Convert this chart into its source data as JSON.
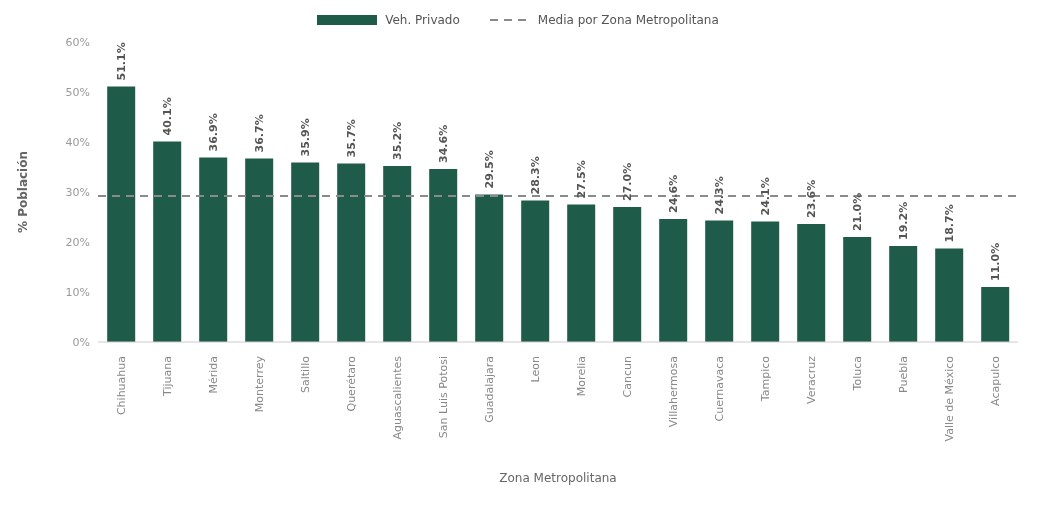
{
  "chart_data": {
    "type": "bar",
    "xlabel": "Zona Metropolitana",
    "ylabel": "% Población",
    "categories": [
      "Chihuahua",
      "Tijuana",
      "Mérida",
      "Monterrey",
      "Saltillo",
      "Querétaro",
      "Aguascalientes",
      "San Luis Potosi",
      "Guadalajara",
      "Leon",
      "Morelia",
      "Cancun",
      "Villahermosa",
      "Cuernavaca",
      "Tampico",
      "Veracruz",
      "Toluca",
      "Puebla",
      "Valle de México",
      "Acapulco"
    ],
    "series": [
      {
        "name": "Veh. Privado",
        "color": "#1e5b48",
        "values": [
          51.1,
          40.1,
          36.9,
          36.7,
          35.9,
          35.7,
          35.2,
          34.6,
          29.5,
          28.3,
          27.5,
          27.0,
          24.6,
          24.3,
          24.1,
          23.6,
          21.0,
          19.2,
          18.7,
          11.0
        ],
        "value_labels": [
          "51.1%",
          "40.1%",
          "36.9%",
          "36.7%",
          "35.9%",
          "35.7%",
          "35.2%",
          "34.6%",
          "29.5%",
          "28.3%",
          "27.5%",
          "27.0%",
          "24.6%",
          "24.3%",
          "24.1%",
          "23.6%",
          "21.0%",
          "19.2%",
          "18.7%",
          "11.0%"
        ]
      }
    ],
    "ylim": [
      0,
      60
    ],
    "yticks": [
      {
        "value": 0,
        "label": "0%"
      },
      {
        "value": 10,
        "label": "10%"
      },
      {
        "value": 20,
        "label": "20%"
      },
      {
        "value": 30,
        "label": "30%"
      },
      {
        "value": 40,
        "label": "40%"
      },
      {
        "value": 50,
        "label": "50%"
      },
      {
        "value": 60,
        "label": "60%"
      }
    ],
    "ref_lines": [
      {
        "axis": "y",
        "value": 29.2,
        "label": "Media por Zona Metropolitana",
        "color": "#8a8a8a",
        "line_style": "dashed"
      }
    ],
    "legend": "top",
    "grid": false
  }
}
